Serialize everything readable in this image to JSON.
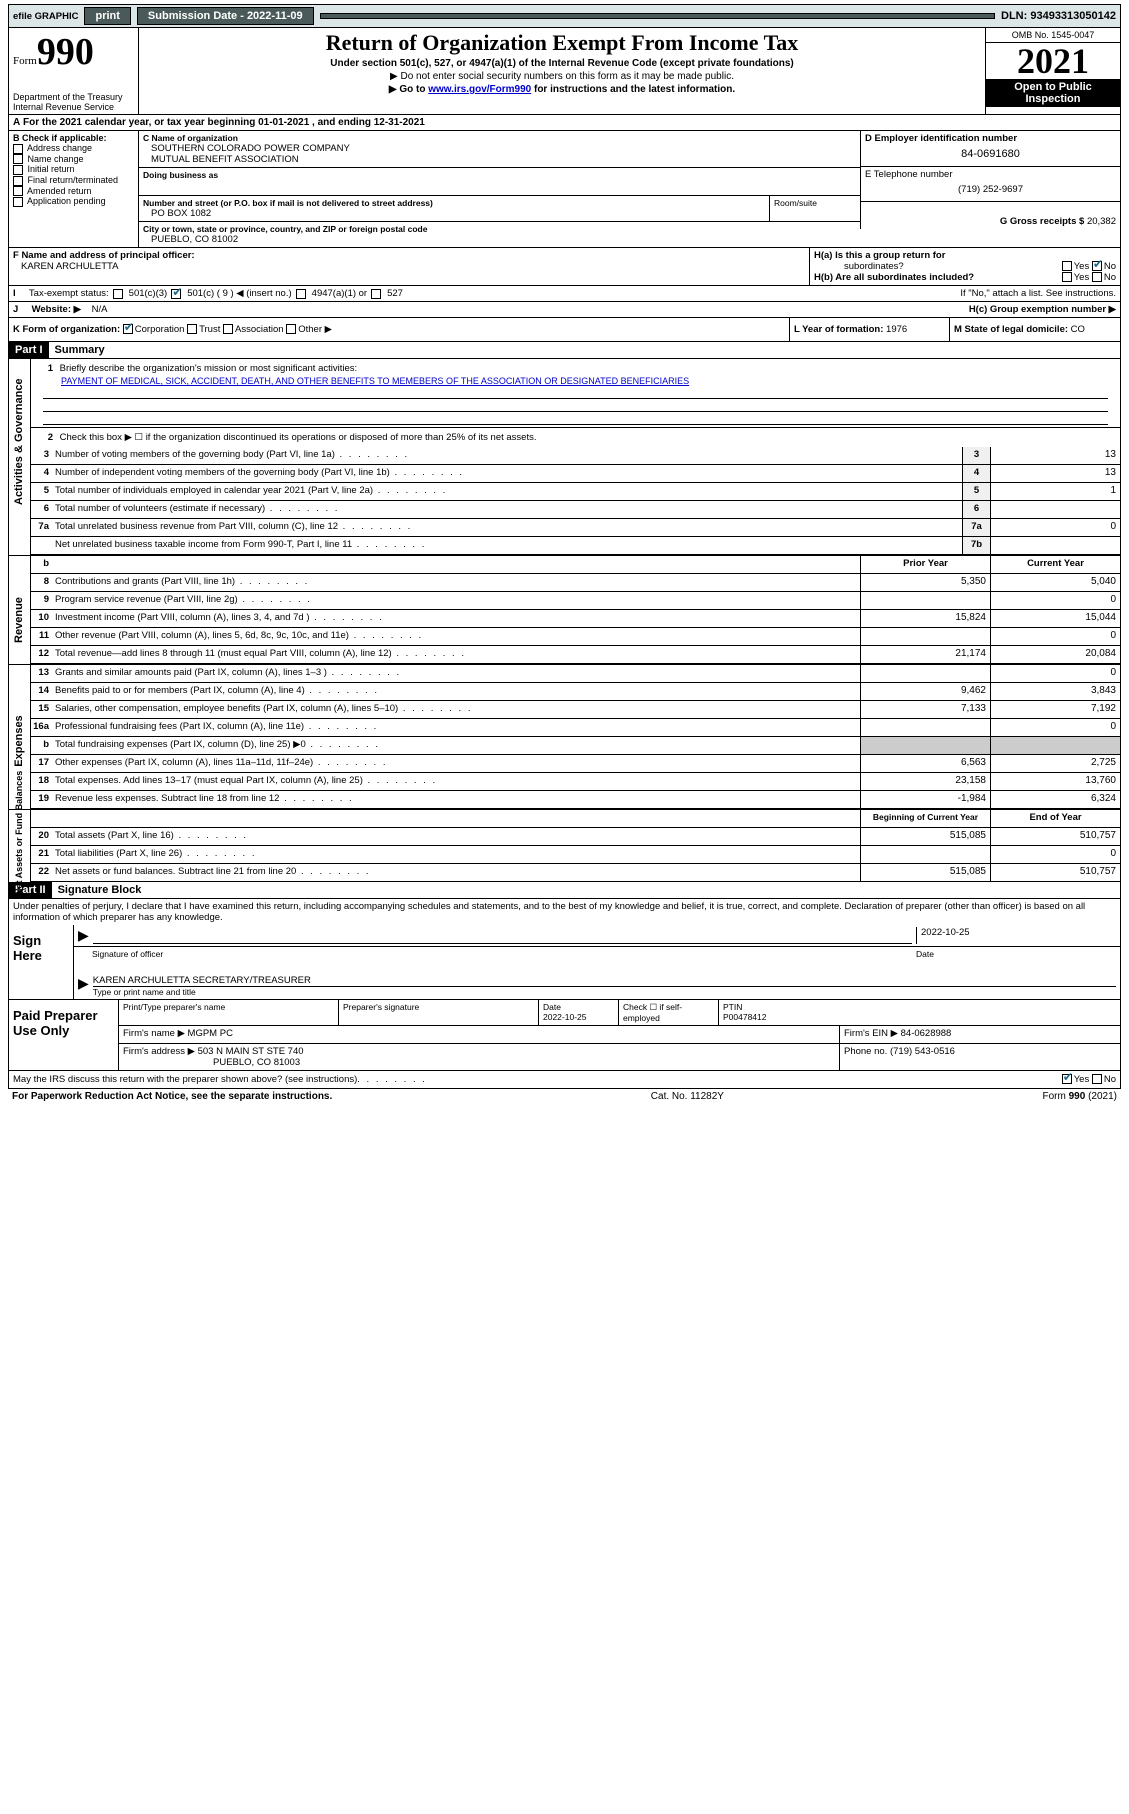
{
  "topbar": {
    "efile": "efile GRAPHIC",
    "print": "print",
    "sub_label": "Submission Date - 2022-11-09",
    "dln": "DLN: 93493313050142"
  },
  "header": {
    "form_word": "Form",
    "form_num": "990",
    "dept": "Department of the Treasury",
    "irs": "Internal Revenue Service",
    "title": "Return of Organization Exempt From Income Tax",
    "sub": "Under section 501(c), 527, or 4947(a)(1) of the Internal Revenue Code (except private foundations)",
    "note1": "▶ Do not enter social security numbers on this form as it may be made public.",
    "note2_pre": "▶ Go to ",
    "note2_link": "www.irs.gov/Form990",
    "note2_post": " for instructions and the latest information.",
    "omb": "OMB No. 1545-0047",
    "year": "2021",
    "open1": "Open to Public",
    "open2": "Inspection"
  },
  "row_a": "For the 2021 calendar year, or tax year beginning 01-01-2021   , and ending 12-31-2021",
  "box_b": {
    "title": "B Check if applicable:",
    "opts": [
      "Address change",
      "Name change",
      "Initial return",
      "Final return/terminated",
      "Amended return",
      "Application pending"
    ]
  },
  "box_c": {
    "label": "C Name of organization",
    "name1": "SOUTHERN COLORADO POWER COMPANY",
    "name2": "MUTUAL BENEFIT ASSOCIATION",
    "dba": "Doing business as",
    "addr_label": "Number and street (or P.O. box if mail is not delivered to street address)",
    "addr": "PO BOX 1082",
    "room": "Room/suite",
    "city_label": "City or town, state or province, country, and ZIP or foreign postal code",
    "city": "PUEBLO, CO  81002"
  },
  "box_d": {
    "label": "D Employer identification number",
    "val": "84-0691680"
  },
  "box_e": {
    "label": "E Telephone number",
    "val": "(719) 252-9697"
  },
  "box_g": {
    "label": "G Gross receipts $",
    "val": "20,382"
  },
  "box_f": {
    "label": "F  Name and address of principal officer:",
    "val": "KAREN ARCHULETTA"
  },
  "box_h": {
    "ha": "H(a)  Is this a group return for",
    "ha2": "subordinates?",
    "hb": "H(b)  Are all subordinates included?",
    "hb2": "If \"No,\" attach a list. See instructions.",
    "hc": "H(c)  Group exemption number ▶",
    "yes": "Yes",
    "no": "No"
  },
  "box_i": {
    "label": "Tax-exempt status:",
    "o1": "501(c)(3)",
    "o2": "501(c) ( 9 ) ◀ (insert no.)",
    "o3": "4947(a)(1) or",
    "o4": "527"
  },
  "box_j": {
    "label": "Website: ▶",
    "val": "N/A"
  },
  "box_k": {
    "label": "K Form of organization:",
    "o1": "Corporation",
    "o2": "Trust",
    "o3": "Association",
    "o4": "Other ▶"
  },
  "box_l": {
    "label": "L Year of formation:",
    "val": "1976"
  },
  "box_m": {
    "label": "M State of legal domicile:",
    "val": "CO"
  },
  "part1": {
    "hdr": "Part I",
    "title": "Summary"
  },
  "summary": {
    "l1_label": "Briefly describe the organization's mission or most significant activities:",
    "l1_text": "PAYMENT OF MEDICAL, SICK, ACCIDENT, DEATH, AND OTHER BENEFITS TO MEMEBERS OF THE ASSOCIATION OR DESIGNATED BENEFICIARIES",
    "l2": "Check this box ▶ ☐  if the organization discontinued its operations or disposed of more than 25% of its net assets.",
    "rows_ag": [
      {
        "n": "3",
        "t": "Number of voting members of the governing body (Part VI, line 1a)",
        "box": "3",
        "v": "13"
      },
      {
        "n": "4",
        "t": "Number of independent voting members of the governing body (Part VI, line 1b)",
        "box": "4",
        "v": "13"
      },
      {
        "n": "5",
        "t": "Total number of individuals employed in calendar year 2021 (Part V, line 2a)",
        "box": "5",
        "v": "1"
      },
      {
        "n": "6",
        "t": "Total number of volunteers (estimate if necessary)",
        "box": "6",
        "v": ""
      },
      {
        "n": "7a",
        "t": "Total unrelated business revenue from Part VIII, column (C), line 12",
        "box": "7a",
        "v": "0"
      },
      {
        "n": "",
        "t": "Net unrelated business taxable income from Form 990-T, Part I, line 11",
        "box": "7b",
        "v": ""
      }
    ],
    "prior": "Prior Year",
    "current": "Current Year",
    "rows_rev": [
      {
        "n": "8",
        "t": "Contributions and grants (Part VIII, line 1h)",
        "p": "5,350",
        "c": "5,040"
      },
      {
        "n": "9",
        "t": "Program service revenue (Part VIII, line 2g)",
        "p": "",
        "c": "0"
      },
      {
        "n": "10",
        "t": "Investment income (Part VIII, column (A), lines 3, 4, and 7d )",
        "p": "15,824",
        "c": "15,044"
      },
      {
        "n": "11",
        "t": "Other revenue (Part VIII, column (A), lines 5, 6d, 8c, 9c, 10c, and 11e)",
        "p": "",
        "c": "0"
      },
      {
        "n": "12",
        "t": "Total revenue—add lines 8 through 11 (must equal Part VIII, column (A), line 12)",
        "p": "21,174",
        "c": "20,084"
      }
    ],
    "rows_exp": [
      {
        "n": "13",
        "t": "Grants and similar amounts paid (Part IX, column (A), lines 1–3 )",
        "p": "",
        "c": "0"
      },
      {
        "n": "14",
        "t": "Benefits paid to or for members (Part IX, column (A), line 4)",
        "p": "9,462",
        "c": "3,843"
      },
      {
        "n": "15",
        "t": "Salaries, other compensation, employee benefits (Part IX, column (A), lines 5–10)",
        "p": "7,133",
        "c": "7,192"
      },
      {
        "n": "16a",
        "t": "Professional fundraising fees (Part IX, column (A), line 11e)",
        "p": "",
        "c": "0"
      },
      {
        "n": "b",
        "t": "Total fundraising expenses (Part IX, column (D), line 25) ▶0",
        "p": "shade",
        "c": "shade"
      },
      {
        "n": "17",
        "t": "Other expenses (Part IX, column (A), lines 11a–11d, 11f–24e)",
        "p": "6,563",
        "c": "2,725"
      },
      {
        "n": "18",
        "t": "Total expenses. Add lines 13–17 (must equal Part IX, column (A), line 25)",
        "p": "23,158",
        "c": "13,760"
      },
      {
        "n": "19",
        "t": "Revenue less expenses. Subtract line 18 from line 12",
        "p": "-1,984",
        "c": "6,324"
      }
    ],
    "beg": "Beginning of Current Year",
    "end": "End of Year",
    "rows_na": [
      {
        "n": "20",
        "t": "Total assets (Part X, line 16)",
        "p": "515,085",
        "c": "510,757"
      },
      {
        "n": "21",
        "t": "Total liabilities (Part X, line 26)",
        "p": "",
        "c": "0"
      },
      {
        "n": "22",
        "t": "Net assets or fund balances. Subtract line 21 from line 20",
        "p": "515,085",
        "c": "510,757"
      }
    ]
  },
  "sides": {
    "ag": "Activities & Governance",
    "rev": "Revenue",
    "exp": "Expenses",
    "na": "Net Assets or\nFund Balances"
  },
  "part2": {
    "hdr": "Part II",
    "title": "Signature Block"
  },
  "perjury": "Under penalties of perjury, I declare that I have examined this return, including accompanying schedules and statements, and to the best of my knowledge and belief, it is true, correct, and complete. Declaration of preparer (other than officer) is based on all information of which preparer has any knowledge.",
  "sign": {
    "here": "Sign Here",
    "sig_officer": "Signature of officer",
    "date": "Date",
    "date_val": "2022-10-25",
    "name": "KAREN ARCHULETTA SECRETARY/TREASURER",
    "name_label": "Type or print name and title"
  },
  "paid": {
    "title": "Paid Preparer Use Only",
    "c1": "Print/Type preparer's name",
    "c2": "Preparer's signature",
    "c3": "Date",
    "c3v": "2022-10-25",
    "c4": "Check ☐ if self-employed",
    "c5": "PTIN",
    "c5v": "P00478412",
    "firm_l": "Firm's name   ▶",
    "firm_v": "MGPM PC",
    "ein_l": "Firm's EIN ▶",
    "ein_v": "84-0628988",
    "addr_l": "Firm's address ▶",
    "addr_v1": "503 N MAIN ST STE 740",
    "addr_v2": "PUEBLO, CO  81003",
    "phone_l": "Phone no.",
    "phone_v": "(719) 543-0516"
  },
  "discuss": "May the IRS discuss this return with the preparer shown above? (see instructions)",
  "footer": {
    "l": "For Paperwork Reduction Act Notice, see the separate instructions.",
    "m": "Cat. No. 11282Y",
    "r": "Form 990 (2021)"
  }
}
